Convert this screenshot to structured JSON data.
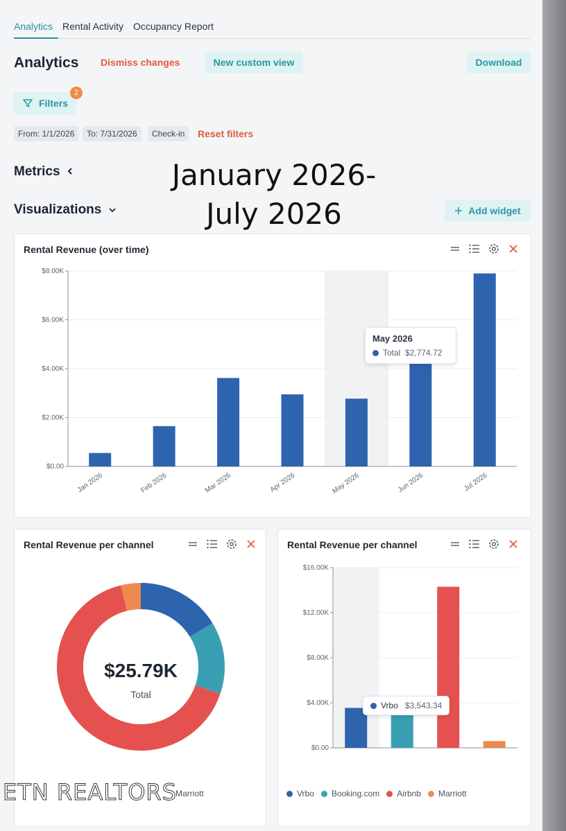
{
  "tabs": [
    "Analytics",
    "Rental Activity",
    "Occupancy Report"
  ],
  "header": {
    "title": "Analytics",
    "dismiss_label": "Dismiss changes",
    "new_view_label": "New custom view",
    "download_label": "Download"
  },
  "filters": {
    "label": "Filters",
    "badge": "2",
    "chips": [
      "From: 1/1/2026",
      "To: 7/31/2026",
      "Check-in"
    ],
    "reset_label": "Reset filters"
  },
  "sections": {
    "metrics": "Metrics",
    "visualizations": "Visualizations",
    "add_widget": "Add widget"
  },
  "overlay_text": [
    "January 2026-",
    "July 2026"
  ],
  "revenue_chart": {
    "title": "Rental Revenue (over time)",
    "tooltip": {
      "title": "May 2026",
      "series": "Total",
      "value": "$2,774.72"
    }
  },
  "donut_card": {
    "title": "Rental Revenue per channel",
    "center_value": "$25.79K",
    "center_label": "Total",
    "legend_visible": "Marriott"
  },
  "channel_bar_card": {
    "title": "Rental Revenue per channel",
    "tooltip": {
      "series": "Vrbo",
      "value": "$3,543.34"
    },
    "legend": [
      "Vrbo",
      "Booking.com",
      "Airbnb",
      "Marriott"
    ]
  },
  "watermark": "ETN REALTORS",
  "colors": {
    "accent": "#2a8fa3",
    "danger": "#e25b3c",
    "vrbo": "#2e63ad",
    "booking": "#3a9fb2",
    "airbnb": "#e5514e",
    "marriott": "#ef8a4f"
  },
  "icons": [
    "filter-icon",
    "chevron-left-icon",
    "chevron-down-icon",
    "plus-icon",
    "drag-icon",
    "list-icon",
    "gear-icon",
    "close-icon"
  ],
  "chart_data": [
    {
      "type": "bar",
      "title": "Rental Revenue (over time)",
      "categories": [
        "Jan 2026",
        "Feb 2026",
        "Mar 2026",
        "Apr 2026",
        "May 2026",
        "Jun 2026",
        "Jul 2026"
      ],
      "values": [
        550,
        1650,
        3620,
        2950,
        2774.72,
        4200,
        7900
      ],
      "y_ticks": [
        "$0.00",
        "$2.00K",
        "$4.00K",
        "$6.00K",
        "$8.00K"
      ],
      "ylim": [
        0,
        8000
      ],
      "highlight_category": "May 2026",
      "grid": true
    },
    {
      "type": "pie",
      "title": "Rental Revenue per channel",
      "categories": [
        "Vrbo",
        "Booking.com",
        "Airbnb",
        "Marriott"
      ],
      "values": [
        4.2,
        3.6,
        17.0,
        0.99
      ],
      "total_label": "$25.79K"
    },
    {
      "type": "bar",
      "title": "Rental Revenue per channel",
      "categories": [
        "Vrbo",
        "Booking.com",
        "Airbnb",
        "Marriott"
      ],
      "values": [
        3543.34,
        3100,
        14300,
        600
      ],
      "y_ticks": [
        "$0.00",
        "$4.00K",
        "$8.00K",
        "$12.00K",
        "$16.00K"
      ],
      "ylim": [
        0,
        16000
      ],
      "highlight_category": "Vrbo",
      "grid": true
    }
  ]
}
